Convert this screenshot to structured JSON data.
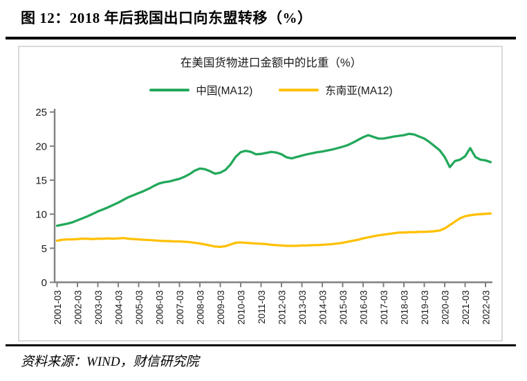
{
  "header": {
    "title": "图 12：2018 年后我国出口向东盟转移（%）"
  },
  "chart": {
    "title": "在美国货物进口金额中的比重（%）"
  },
  "chart_data": {
    "type": "line",
    "title": "在美国货物进口金额中的比重（%）",
    "x_start": "2001-03",
    "x_step_months": 3,
    "x_tick_labels": [
      "2001-03",
      "2002-03",
      "2003-03",
      "2004-03",
      "2005-03",
      "2006-03",
      "2007-03",
      "2008-03",
      "2009-03",
      "2010-03",
      "2011-03",
      "2012-03",
      "2013-03",
      "2014-03",
      "2015-03",
      "2016-03",
      "2017-03",
      "2018-03",
      "2019-03",
      "2020-03",
      "2021-03",
      "2022-03"
    ],
    "ylim": [
      0,
      25
    ],
    "yticks": [
      0,
      5,
      10,
      15,
      20,
      25
    ],
    "grid": false,
    "legend_position": "top",
    "axis_color": "#808080",
    "series": [
      {
        "name": "中国(MA12)",
        "color": "#22A85A",
        "values": [
          8.3,
          8.45,
          8.6,
          8.8,
          9.1,
          9.4,
          9.7,
          10.05,
          10.4,
          10.7,
          11.0,
          11.35,
          11.7,
          12.1,
          12.5,
          12.8,
          13.1,
          13.4,
          13.75,
          14.15,
          14.5,
          14.7,
          14.8,
          15.0,
          15.2,
          15.5,
          15.9,
          16.4,
          16.7,
          16.6,
          16.3,
          15.95,
          16.1,
          16.5,
          17.3,
          18.4,
          19.1,
          19.3,
          19.15,
          18.8,
          18.85,
          19.0,
          19.15,
          19.05,
          18.8,
          18.35,
          18.2,
          18.4,
          18.6,
          18.8,
          18.95,
          19.1,
          19.2,
          19.35,
          19.5,
          19.7,
          19.9,
          20.15,
          20.5,
          20.9,
          21.3,
          21.6,
          21.35,
          21.1,
          21.1,
          21.25,
          21.4,
          21.5,
          21.6,
          21.8,
          21.7,
          21.4,
          21.1,
          20.6,
          20.0,
          19.4,
          18.4,
          16.9,
          17.8,
          18.0,
          18.5,
          19.7,
          18.4,
          18.0,
          17.9,
          17.65
        ]
      },
      {
        "name": "东南亚(MA12)",
        "color": "#FFC000",
        "values": [
          6.1,
          6.25,
          6.3,
          6.3,
          6.35,
          6.4,
          6.4,
          6.35,
          6.4,
          6.4,
          6.45,
          6.4,
          6.45,
          6.5,
          6.4,
          6.35,
          6.3,
          6.25,
          6.2,
          6.15,
          6.1,
          6.05,
          6.05,
          6.0,
          6.0,
          5.95,
          5.9,
          5.8,
          5.7,
          5.55,
          5.4,
          5.25,
          5.2,
          5.3,
          5.55,
          5.8,
          5.85,
          5.8,
          5.75,
          5.7,
          5.65,
          5.6,
          5.5,
          5.45,
          5.4,
          5.35,
          5.35,
          5.35,
          5.4,
          5.4,
          5.45,
          5.45,
          5.5,
          5.55,
          5.6,
          5.7,
          5.8,
          5.95,
          6.1,
          6.25,
          6.45,
          6.6,
          6.75,
          6.9,
          7.0,
          7.1,
          7.2,
          7.3,
          7.3,
          7.35,
          7.35,
          7.4,
          7.4,
          7.45,
          7.5,
          7.6,
          7.9,
          8.4,
          8.9,
          9.4,
          9.7,
          9.85,
          9.95,
          10.0,
          10.05,
          10.1
        ]
      }
    ]
  },
  "footer": {
    "source": "资料来源：WIND，财信研究院"
  },
  "colors": {
    "china_green": "#22A85A",
    "sea_yellow": "#FFC000",
    "axis_gray": "#808080",
    "panel_border": "#D9D9D9",
    "rule_black": "#000000"
  }
}
